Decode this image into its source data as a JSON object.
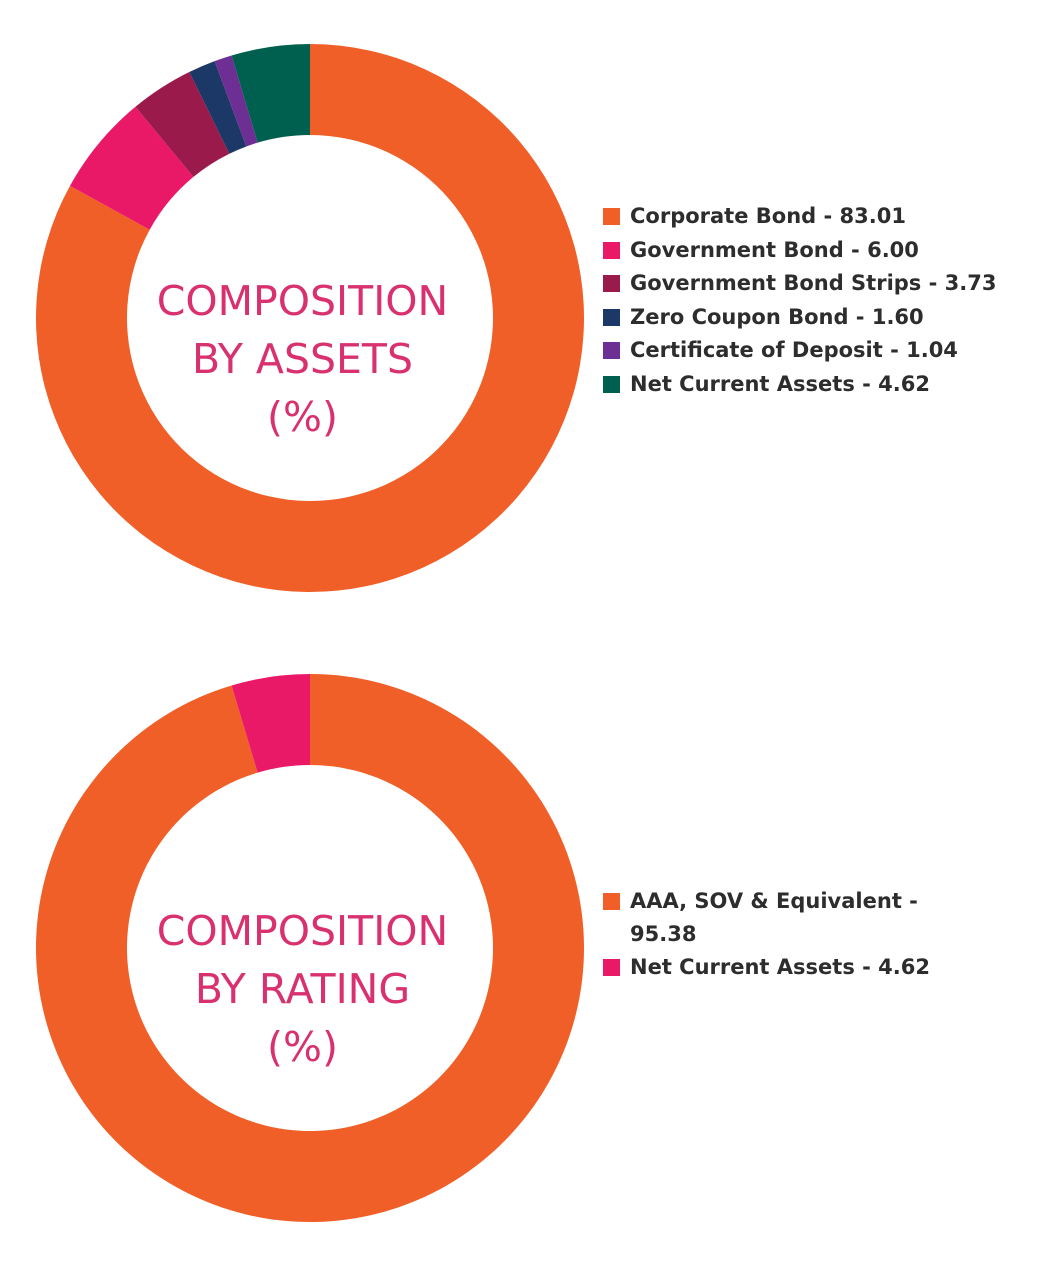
{
  "chart_data": [
    {
      "type": "pie",
      "title": "COMPOSITION BY ASSETS (%)",
      "title_lines": [
        "COMPOSITION",
        "BY ASSETS",
        "(%)"
      ],
      "hole": true,
      "legend_position": "right",
      "slices": [
        {
          "label": "Corporate Bond - 83.01",
          "value": 83.01,
          "color": "#f05f28"
        },
        {
          "label": "Government Bond - 6.00",
          "value": 6.0,
          "color": "#ea1968"
        },
        {
          "label": "Government Bond Strips - 3.73",
          "value": 3.73,
          "color": "#9b1a4c"
        },
        {
          "label": "Zero Coupon Bond - 1.60",
          "value": 1.6,
          "color": "#1c3866"
        },
        {
          "label": "Certificate of Deposit - 1.04",
          "value": 1.04,
          "color": "#6d2f94"
        },
        {
          "label": "Net Current Assets - 4.62",
          "value": 4.62,
          "color": "#00604f"
        }
      ]
    },
    {
      "type": "pie",
      "title": "COMPOSITION BY RATING (%)",
      "title_lines": [
        "COMPOSITION",
        "BY RATING",
        "(%)"
      ],
      "hole": true,
      "legend_position": "right",
      "slices": [
        {
          "label": "AAA, SOV & Equivalent - 95.38",
          "value": 95.38,
          "color": "#f05f28"
        },
        {
          "label": "Net Current Assets - 4.62",
          "value": 4.62,
          "color": "#ea1968"
        }
      ]
    }
  ]
}
